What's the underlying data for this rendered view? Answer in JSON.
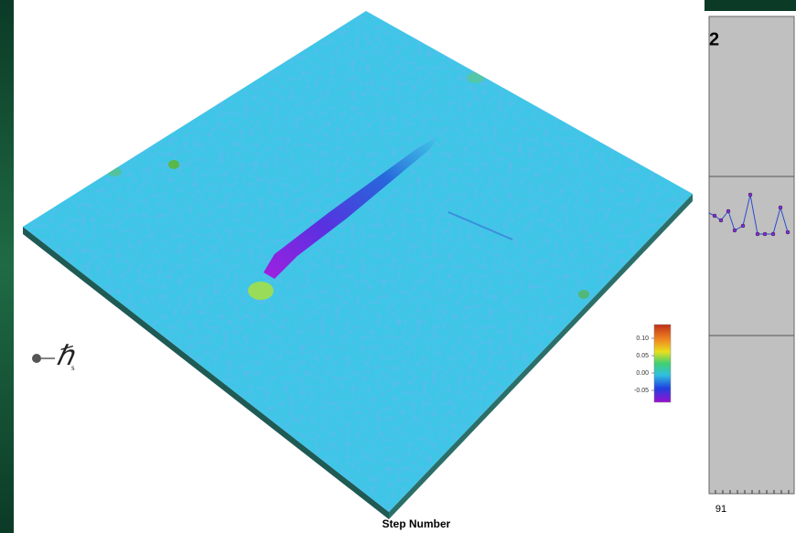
{
  "background_chart": {
    "title_fragment": "2",
    "x_tick": "91",
    "x_label": "Step Number"
  },
  "symbol": {
    "main": "ℏ",
    "subscript": "s"
  },
  "colorbar": {
    "ticks": [
      "0.10",
      "0.05",
      "0.00",
      "-0.05"
    ]
  }
}
